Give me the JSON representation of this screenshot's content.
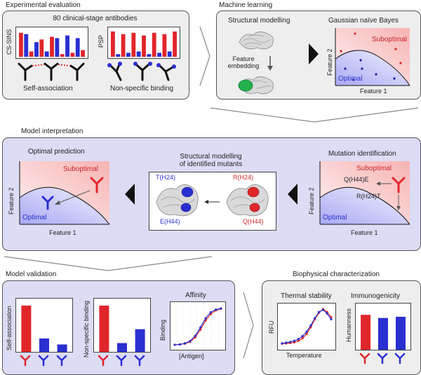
{
  "sections": {
    "experimental_evaluation": "Experimental evaluation",
    "machine_learning": "Machine learning",
    "model_interpretation": "Model interpretation",
    "model_validation": "Model validation",
    "biophysical_characterization": "Biophysical characterization"
  },
  "experimental": {
    "header": "80 clinical-stage antibodies",
    "assay_left": "CS-SINS",
    "assay_right": "PSP",
    "caption_left": "Self-association",
    "caption_right": "Non-specific binding"
  },
  "ml": {
    "structural_modelling": "Structural modelling",
    "feature_embedding_line1": "Feature",
    "feature_embedding_line2": "embedding",
    "classifier_title": "Gaussian naïve Bayes",
    "suboptimal": "Suboptimal",
    "optimal": "Optimal",
    "feature1": "Feature 1",
    "feature2": "Feature 2"
  },
  "interpretation": {
    "optimal_prediction": "Optimal prediction",
    "structural_mutants_line1": "Structural modelling",
    "structural_mutants_line2": "of identified mutants",
    "mutation_identification": "Mutation identification",
    "suboptimal": "Suboptimal",
    "optimal": "Optimal",
    "feature1": "Feature 1",
    "feature2": "Feature 2",
    "mut_q44e": "Q(H44)E",
    "mut_r24t": "R(H24)T",
    "t_h24": "T(H24)",
    "e_h44": "E(H44)",
    "r_h24": "R(H24)",
    "q_h44": "Q(H44)"
  },
  "validation": {
    "ylabel_self": "Self-association",
    "ylabel_nsb": "Non-specific binding",
    "affinity_title": "Affinity",
    "affinity_ylabel": "Binding",
    "affinity_xlabel": "[Antigen]"
  },
  "biophysical": {
    "thermal_title": "Thermal stability",
    "rfu": "RFU",
    "temperature": "Temperature",
    "immunogenicity_title": "Immunogenicity",
    "humanness": "Humanness"
  },
  "colors": {
    "red": "#e0262b",
    "blue": "#2a2fd0",
    "gray_panel": "#eeeeee",
    "lavender_panel": "#dcdcf5"
  },
  "chart_data": [
    {
      "type": "bar",
      "ylabel": "CS-SINS",
      "values": [
        0.9,
        0.85,
        0.2,
        0.55,
        0.65,
        0.2,
        0.75,
        0.7,
        0.1,
        0.8,
        0.15,
        0.7,
        0.25
      ]
    },
    {
      "type": "bar",
      "ylabel": "PSP",
      "values": [
        0.95,
        0.1,
        0.85,
        0.15,
        0.9,
        0.2,
        0.8,
        0.1,
        0.9,
        0.15,
        0.85,
        0.2,
        0.95
      ]
    },
    {
      "type": "bar",
      "ylabel": "Self-association",
      "values": [
        1.0,
        0.29,
        0.16
      ],
      "colors": [
        "#e0262b",
        "#2a2fd0",
        "#2a2fd0"
      ]
    },
    {
      "type": "bar",
      "ylabel": "Non-specific binding",
      "values": [
        1.0,
        0.19,
        0.49
      ],
      "colors": [
        "#e0262b",
        "#2a2fd0",
        "#2a2fd0"
      ]
    },
    {
      "type": "line",
      "title": "Affinity",
      "xlabel": "[Antigen]",
      "ylabel": "Binding",
      "series": [
        {
          "values": [
            0.02,
            0.03,
            0.05,
            0.1,
            0.22,
            0.42,
            0.66,
            0.83,
            0.93,
            0.97
          ],
          "color": "#e0262b"
        },
        {
          "values": [
            0.02,
            0.03,
            0.06,
            0.12,
            0.26,
            0.48,
            0.72,
            0.88,
            0.95,
            0.98
          ],
          "color": "#2a2fd0"
        }
      ]
    },
    {
      "type": "line",
      "title": "Thermal stability",
      "xlabel": "Temperature",
      "ylabel": "RFU",
      "series": [
        {
          "values": [
            0.05,
            0.06,
            0.07,
            0.09,
            0.13,
            0.2,
            0.32,
            0.5,
            0.72,
            0.9,
            1.0,
            0.92,
            0.78
          ],
          "color": "#e0262b"
        },
        {
          "values": [
            0.06,
            0.08,
            0.1,
            0.13,
            0.18,
            0.26,
            0.38,
            0.55,
            0.75,
            0.92,
            0.98,
            0.88,
            0.72
          ],
          "color": "#2a2fd0"
        }
      ]
    },
    {
      "type": "bar",
      "title": "Immunogenicity",
      "ylabel": "Humanness",
      "values": [
        0.89,
        0.81,
        0.84
      ],
      "colors": [
        "#e0262b",
        "#2a2fd0",
        "#2a2fd0"
      ]
    }
  ]
}
